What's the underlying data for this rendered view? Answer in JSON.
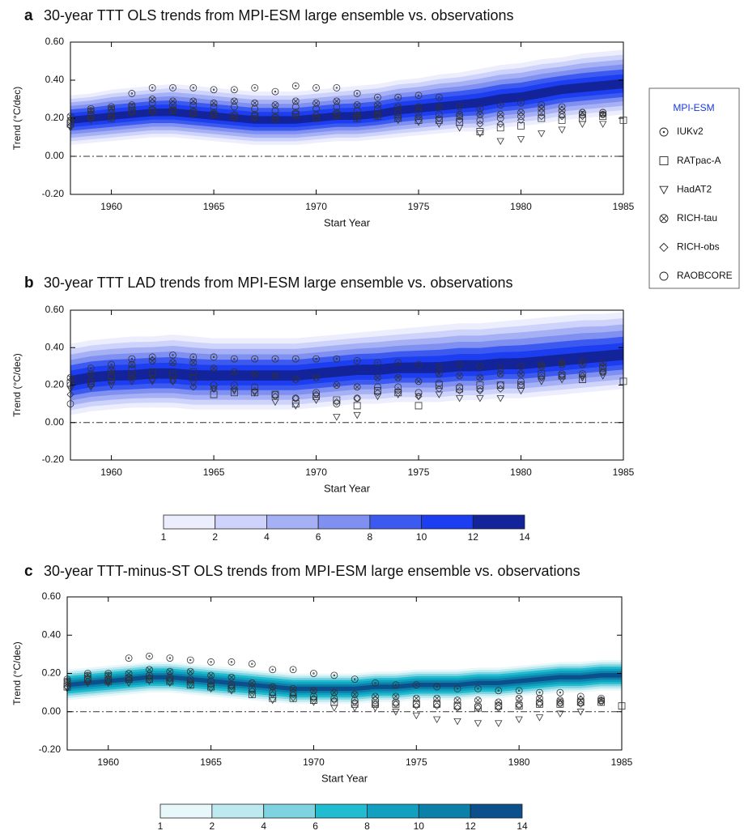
{
  "chart_data": [
    {
      "type": "scatter",
      "panel_label": "a",
      "title": "30-year TTT OLS trends from MPI-ESM large ensemble vs. observations",
      "x_label": "Start Year",
      "y_label": "Trend (°C/dec)",
      "legend_title": "MPI-ESM",
      "xlim": [
        1958,
        1985
      ],
      "xticks": [
        1960,
        1965,
        1970,
        1975,
        1980,
        1985
      ],
      "ylim": [
        -0.2,
        0.6
      ],
      "yticks": [
        {
          "value": -0.2,
          "label": "-0.20"
        },
        {
          "value": 0,
          "label": "0.00"
        },
        {
          "value": 0.2,
          "label": "0.20"
        },
        {
          "value": 0.4,
          "label": "0.40"
        },
        {
          "value": 0.6,
          "label": "0.60"
        }
      ],
      "reference_line": 0,
      "contour_colors": [
        "#eceefd",
        "#cdd3fa",
        "#a6b0f5",
        "#8090f0",
        "#3c5af0",
        "#1c3df0",
        "#13239a"
      ],
      "x": [
        1958,
        1959,
        1960,
        1961,
        1962,
        1963,
        1964,
        1965,
        1966,
        1967,
        1968,
        1969,
        1970,
        1971,
        1972,
        1973,
        1974,
        1975,
        1976,
        1977,
        1978,
        1979,
        1980,
        1981,
        1982,
        1983,
        1984,
        1985
      ],
      "ensemble_median": [
        0.19,
        0.2,
        0.21,
        0.22,
        0.23,
        0.23,
        0.22,
        0.21,
        0.2,
        0.19,
        0.19,
        0.19,
        0.2,
        0.21,
        0.21,
        0.22,
        0.24,
        0.25,
        0.26,
        0.27,
        0.28,
        0.3,
        0.31,
        0.33,
        0.35,
        0.36,
        0.37,
        0.38
      ],
      "ensemble_low": [
        0.06,
        0.07,
        0.08,
        0.09,
        0.1,
        0.1,
        0.09,
        0.08,
        0.07,
        0.06,
        0.06,
        0.06,
        0.07,
        0.08,
        0.08,
        0.09,
        0.1,
        0.11,
        0.12,
        0.13,
        0.13,
        0.15,
        0.16,
        0.17,
        0.19,
        0.2,
        0.21,
        0.22
      ],
      "ensemble_high": [
        0.32,
        0.33,
        0.35,
        0.36,
        0.37,
        0.38,
        0.37,
        0.36,
        0.35,
        0.34,
        0.34,
        0.34,
        0.35,
        0.36,
        0.37,
        0.38,
        0.4,
        0.41,
        0.43,
        0.44,
        0.46,
        0.48,
        0.49,
        0.51,
        0.52,
        0.54,
        0.55,
        0.56
      ],
      "series": [
        {
          "name": "IUKv2",
          "marker": "circle-dot",
          "values": [
            0.19,
            0.25,
            0.26,
            0.33,
            0.36,
            0.36,
            0.36,
            0.35,
            0.35,
            0.36,
            0.34,
            0.37,
            0.36,
            0.36,
            0.33,
            0.31,
            0.31,
            0.32,
            0.31,
            0.26,
            0.25,
            0.27,
            0.28,
            0.27,
            0.26,
            0.23,
            0.23,
            null
          ]
        },
        {
          "name": "RATpac-A",
          "marker": "square",
          "values": [
            0.17,
            0.21,
            0.2,
            0.24,
            0.24,
            0.24,
            0.23,
            0.22,
            0.21,
            0.21,
            0.2,
            0.22,
            0.2,
            0.22,
            0.2,
            0.21,
            0.2,
            0.19,
            0.19,
            0.18,
            0.13,
            0.15,
            0.16,
            0.2,
            0.19,
            0.2,
            0.21,
            0.19
          ]
        },
        {
          "name": "HadAT2",
          "marker": "triangle-down",
          "values": [
            0.15,
            0.19,
            0.2,
            0.23,
            0.23,
            0.24,
            0.22,
            0.22,
            0.2,
            0.2,
            0.19,
            0.21,
            0.2,
            0.21,
            0.2,
            0.21,
            0.19,
            0.18,
            0.17,
            0.15,
            0.12,
            0.08,
            0.09,
            0.12,
            0.14,
            0.17,
            0.17,
            null
          ]
        },
        {
          "name": "RICH-tau",
          "marker": "circle-x",
          "values": [
            0.21,
            0.24,
            0.25,
            0.27,
            0.3,
            0.29,
            0.29,
            0.28,
            0.29,
            0.28,
            0.27,
            0.29,
            0.28,
            0.29,
            0.27,
            0.27,
            0.26,
            0.26,
            0.26,
            0.22,
            0.22,
            0.22,
            0.23,
            0.25,
            0.24,
            0.23,
            0.22,
            null
          ]
        },
        {
          "name": "RICH-obs",
          "marker": "diamond",
          "values": [
            0.16,
            0.2,
            0.21,
            0.23,
            0.25,
            0.25,
            0.24,
            0.23,
            0.22,
            0.22,
            0.21,
            0.23,
            0.22,
            0.23,
            0.22,
            0.22,
            0.21,
            0.21,
            0.2,
            0.19,
            0.17,
            0.17,
            0.19,
            0.21,
            0.21,
            0.21,
            0.22,
            null
          ]
        },
        {
          "name": "RAOBCORE",
          "marker": "circle",
          "values": [
            0.18,
            0.22,
            0.23,
            0.26,
            0.28,
            0.27,
            0.27,
            0.26,
            0.26,
            0.25,
            0.24,
            0.26,
            0.25,
            0.26,
            0.24,
            0.25,
            0.23,
            0.23,
            0.22,
            0.21,
            0.19,
            0.2,
            0.21,
            0.23,
            0.22,
            0.22,
            0.23,
            null
          ]
        }
      ]
    },
    {
      "type": "scatter",
      "panel_label": "b",
      "title": "30-year TTT LAD trends from MPI-ESM large ensemble vs. observations",
      "x_label": "Start Year",
      "y_label": "Trend (°C/dec)",
      "xlim": [
        1958,
        1985
      ],
      "xticks": [
        1960,
        1965,
        1970,
        1975,
        1980,
        1985
      ],
      "ylim": [
        -0.2,
        0.6
      ],
      "yticks": [
        {
          "value": -0.2,
          "label": "-0.20"
        },
        {
          "value": 0,
          "label": "0.00"
        },
        {
          "value": 0.2,
          "label": "0.20"
        },
        {
          "value": 0.4,
          "label": "0.40"
        },
        {
          "value": 0.6,
          "label": "0.60"
        }
      ],
      "reference_line": 0,
      "contour_colors": [
        "#eceefd",
        "#cdd3fa",
        "#a6b0f5",
        "#8090f0",
        "#3c5af0",
        "#1c3df0",
        "#13239a"
      ],
      "colorbar_levels": [
        1,
        2,
        4,
        6,
        8,
        10,
        12,
        14
      ],
      "x": [
        1958,
        1959,
        1960,
        1961,
        1962,
        1963,
        1964,
        1965,
        1966,
        1967,
        1968,
        1969,
        1970,
        1971,
        1972,
        1973,
        1974,
        1975,
        1976,
        1977,
        1978,
        1979,
        1980,
        1981,
        1982,
        1983,
        1984,
        1985
      ],
      "ensemble_median": [
        0.22,
        0.24,
        0.25,
        0.25,
        0.26,
        0.26,
        0.25,
        0.25,
        0.25,
        0.25,
        0.25,
        0.25,
        0.26,
        0.27,
        0.28,
        0.28,
        0.29,
        0.29,
        0.29,
        0.3,
        0.3,
        0.31,
        0.31,
        0.32,
        0.33,
        0.34,
        0.35,
        0.36
      ],
      "ensemble_low": [
        0.04,
        0.06,
        0.07,
        0.08,
        0.08,
        0.08,
        0.07,
        0.07,
        0.07,
        0.07,
        0.07,
        0.07,
        0.08,
        0.09,
        0.1,
        0.1,
        0.11,
        0.11,
        0.11,
        0.12,
        0.12,
        0.13,
        0.13,
        0.14,
        0.15,
        0.16,
        0.17,
        0.18
      ],
      "ensemble_high": [
        0.42,
        0.44,
        0.45,
        0.46,
        0.46,
        0.47,
        0.46,
        0.45,
        0.45,
        0.45,
        0.45,
        0.45,
        0.46,
        0.47,
        0.48,
        0.49,
        0.5,
        0.51,
        0.52,
        0.53,
        0.53,
        0.54,
        0.55,
        0.56,
        0.57,
        0.58,
        0.58,
        0.59
      ],
      "series": [
        {
          "name": "IUKv2",
          "marker": "circle-dot",
          "values": [
            0.2,
            0.29,
            0.31,
            0.34,
            0.35,
            0.36,
            0.35,
            0.35,
            0.34,
            0.34,
            0.34,
            0.34,
            0.34,
            0.34,
            0.33,
            0.32,
            0.32,
            0.31,
            0.3,
            0.31,
            0.3,
            0.29,
            0.3,
            0.31,
            0.32,
            0.33,
            0.32,
            null
          ]
        },
        {
          "name": "RATpac-A",
          "marker": "square",
          "values": [
            0.21,
            0.21,
            0.25,
            0.28,
            0.27,
            0.26,
            0.27,
            0.15,
            0.16,
            0.16,
            0.15,
            0.1,
            0.14,
            0.12,
            0.09,
            0.17,
            0.16,
            0.09,
            0.2,
            0.18,
            0.2,
            0.2,
            0.2,
            0.26,
            0.25,
            0.23,
            0.29,
            0.22
          ]
        },
        {
          "name": "HadAT2",
          "marker": "triangle-down",
          "values": [
            0.18,
            0.19,
            0.2,
            0.22,
            0.22,
            0.22,
            0.21,
            0.18,
            0.17,
            0.16,
            0.11,
            0.09,
            0.12,
            0.03,
            0.04,
            0.14,
            0.15,
            0.14,
            0.15,
            0.13,
            0.13,
            0.13,
            0.17,
            0.22,
            0.23,
            0.24,
            0.25,
            null
          ]
        },
        {
          "name": "RICH-tau",
          "marker": "circle-x",
          "values": [
            0.24,
            0.26,
            0.28,
            0.31,
            0.33,
            0.32,
            0.32,
            0.29,
            0.27,
            0.26,
            0.25,
            0.23,
            0.24,
            0.2,
            0.19,
            0.24,
            0.24,
            0.22,
            0.26,
            0.25,
            0.24,
            0.26,
            0.26,
            0.3,
            0.31,
            0.31,
            0.3,
            null
          ]
        },
        {
          "name": "RICH-obs",
          "marker": "diamond",
          "values": [
            0.15,
            0.2,
            0.22,
            0.24,
            0.23,
            0.22,
            0.19,
            0.18,
            0.18,
            0.17,
            0.14,
            0.13,
            0.15,
            0.11,
            0.13,
            0.16,
            0.17,
            0.14,
            0.18,
            0.17,
            0.17,
            0.18,
            0.2,
            0.24,
            0.25,
            0.25,
            0.27,
            null
          ]
        },
        {
          "name": "RAOBCORE",
          "marker": "circle",
          "values": [
            0.1,
            0.22,
            0.24,
            0.26,
            0.26,
            0.25,
            0.24,
            0.2,
            0.2,
            0.19,
            0.15,
            0.13,
            0.16,
            0.1,
            0.13,
            0.19,
            0.19,
            0.16,
            0.21,
            0.19,
            0.18,
            0.2,
            0.22,
            0.25,
            0.26,
            0.26,
            0.27,
            null
          ]
        }
      ]
    },
    {
      "type": "scatter",
      "panel_label": "c",
      "title": "30-year TTT-minus-ST OLS trends from MPI-ESM large ensemble vs. observations",
      "x_label": "Start Year",
      "y_label": "Trend (°C/dec)",
      "xlim": [
        1958,
        1985
      ],
      "xticks": [
        1960,
        1965,
        1970,
        1975,
        1980,
        1985
      ],
      "ylim": [
        -0.2,
        0.6
      ],
      "yticks": [
        {
          "value": -0.2,
          "label": "-0.20"
        },
        {
          "value": 0,
          "label": "0.00"
        },
        {
          "value": 0.2,
          "label": "0.20"
        },
        {
          "value": 0.4,
          "label": "0.40"
        },
        {
          "value": 0.6,
          "label": "0.60"
        }
      ],
      "reference_line": 0,
      "contour_colors": [
        "#e8f8fa",
        "#bde9f0",
        "#7dd3e0",
        "#20bcd0",
        "#12a0c0",
        "#0b80a8",
        "#0b4f8c"
      ],
      "colorbar_levels": [
        1,
        2,
        4,
        6,
        8,
        10,
        12,
        14
      ],
      "x": [
        1958,
        1959,
        1960,
        1961,
        1962,
        1963,
        1964,
        1965,
        1966,
        1967,
        1968,
        1969,
        1970,
        1971,
        1972,
        1973,
        1974,
        1975,
        1976,
        1977,
        1978,
        1979,
        1980,
        1981,
        1982,
        1983,
        1984,
        1985
      ],
      "ensemble_median": [
        0.14,
        0.15,
        0.16,
        0.17,
        0.18,
        0.18,
        0.17,
        0.16,
        0.15,
        0.14,
        0.13,
        0.12,
        0.12,
        0.12,
        0.12,
        0.13,
        0.13,
        0.14,
        0.14,
        0.14,
        0.15,
        0.15,
        0.16,
        0.17,
        0.18,
        0.18,
        0.19,
        0.19
      ],
      "ensemble_low": [
        0.06,
        0.07,
        0.08,
        0.09,
        0.1,
        0.1,
        0.09,
        0.08,
        0.07,
        0.06,
        0.05,
        0.04,
        0.04,
        0.04,
        0.04,
        0.05,
        0.05,
        0.06,
        0.06,
        0.06,
        0.07,
        0.07,
        0.08,
        0.09,
        0.1,
        0.1,
        0.11,
        0.11
      ],
      "ensemble_high": [
        0.22,
        0.23,
        0.24,
        0.25,
        0.26,
        0.26,
        0.25,
        0.24,
        0.23,
        0.22,
        0.21,
        0.2,
        0.2,
        0.2,
        0.2,
        0.21,
        0.21,
        0.22,
        0.22,
        0.22,
        0.23,
        0.23,
        0.24,
        0.25,
        0.26,
        0.26,
        0.27,
        0.27
      ],
      "series": [
        {
          "name": "IUKv2",
          "marker": "circle-dot",
          "values": [
            0.17,
            0.2,
            0.2,
            0.28,
            0.29,
            0.28,
            0.27,
            0.26,
            0.26,
            0.25,
            0.22,
            0.22,
            0.2,
            0.19,
            0.17,
            0.15,
            0.14,
            0.14,
            0.13,
            0.12,
            0.12,
            0.11,
            0.11,
            0.1,
            0.1,
            0.08,
            0.07,
            null
          ]
        },
        {
          "name": "RATpac-A",
          "marker": "square",
          "values": [
            0.13,
            0.17,
            0.16,
            0.17,
            0.17,
            0.16,
            0.14,
            0.13,
            0.12,
            0.09,
            0.07,
            0.07,
            0.06,
            0.05,
            0.04,
            0.04,
            0.04,
            0.04,
            0.04,
            0.03,
            0.02,
            0.03,
            0.03,
            0.04,
            0.04,
            0.05,
            0.05,
            0.03
          ]
        },
        {
          "name": "HadAT2",
          "marker": "triangle-down",
          "values": [
            0.12,
            0.15,
            0.15,
            0.15,
            0.16,
            0.15,
            0.14,
            0.12,
            0.11,
            0.09,
            0.06,
            0.07,
            0.05,
            0.02,
            0.02,
            0.02,
            0.0,
            -0.02,
            -0.04,
            -0.05,
            -0.06,
            -0.06,
            -0.04,
            -0.03,
            -0.01,
            0.0,
            null,
            null
          ]
        },
        {
          "name": "RICH-tau",
          "marker": "circle-x",
          "values": [
            0.16,
            0.19,
            0.19,
            0.2,
            0.22,
            0.21,
            0.21,
            0.19,
            0.18,
            0.15,
            0.13,
            0.12,
            0.11,
            0.1,
            0.09,
            0.08,
            0.08,
            0.07,
            0.07,
            0.06,
            0.06,
            0.05,
            0.07,
            0.07,
            0.06,
            0.06,
            0.06,
            null
          ]
        },
        {
          "name": "RICH-obs",
          "marker": "diamond",
          "values": [
            0.13,
            0.16,
            0.16,
            0.17,
            0.18,
            0.17,
            0.16,
            0.14,
            0.13,
            0.11,
            0.09,
            0.09,
            0.07,
            0.06,
            0.05,
            0.04,
            0.04,
            0.03,
            0.03,
            0.02,
            0.02,
            0.02,
            0.03,
            0.04,
            0.04,
            0.04,
            0.05,
            null
          ]
        },
        {
          "name": "RAOBCORE",
          "marker": "circle",
          "values": [
            0.15,
            0.17,
            0.17,
            0.18,
            0.19,
            0.18,
            0.17,
            0.16,
            0.14,
            0.12,
            0.1,
            0.1,
            0.08,
            0.07,
            0.06,
            0.06,
            0.05,
            0.04,
            0.04,
            0.03,
            0.03,
            0.03,
            0.04,
            0.05,
            0.05,
            0.05,
            0.06,
            null
          ]
        }
      ]
    }
  ]
}
